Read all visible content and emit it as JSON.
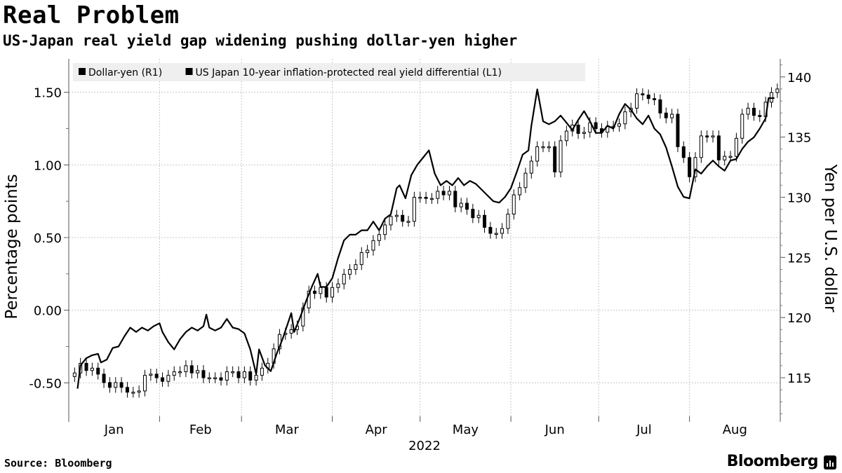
{
  "header": {
    "title": "Real Problem",
    "subtitle": "US-Japan real yield gap widening pushing dollar-yen higher"
  },
  "footer": {
    "source": "Source: Bloomberg",
    "brand": "Bloomberg"
  },
  "chart_data": {
    "type": "line",
    "legend": [
      {
        "name": "Dollar-yen (R1)",
        "color": "#000000"
      },
      {
        "name": "US Japan 10-year inflation-protected real yield differential (L1)",
        "color": "#000000"
      }
    ],
    "legend_placement": "top-left",
    "xlabel": "2022",
    "x_ticks": [
      "Jan",
      "Feb",
      "Mar",
      "Apr",
      "May",
      "Jun",
      "Jul",
      "Aug"
    ],
    "ylabel_left": "Percentage points",
    "ylabel_right": "Yen per U.S. dollar",
    "left_ticks": [
      "1.50",
      "1.00",
      "0.50",
      "0.00",
      "-0.50"
    ],
    "right_ticks": [
      "140",
      "135",
      "130",
      "125",
      "120",
      "115"
    ],
    "ylim_left": [
      -0.73,
      1.73
    ],
    "ylim_right": [
      111.8,
      141.5
    ],
    "xlim": [
      "2022-01-01",
      "2022-09-01"
    ],
    "grid": true,
    "series": [
      {
        "name": "US Japan 10-year inflation-protected real yield differential (L1)",
        "axis": "left",
        "type": "line",
        "points": [
          [
            "2022-01-04",
            -0.54
          ],
          [
            "2022-01-05",
            -0.38
          ],
          [
            "2022-01-07",
            -0.33
          ],
          [
            "2022-01-09",
            -0.31
          ],
          [
            "2022-01-11",
            -0.3
          ],
          [
            "2022-01-12",
            -0.36
          ],
          [
            "2022-01-14",
            -0.34
          ],
          [
            "2022-01-16",
            -0.26
          ],
          [
            "2022-01-18",
            -0.25
          ],
          [
            "2022-01-20",
            -0.18
          ],
          [
            "2022-01-22",
            -0.12
          ],
          [
            "2022-01-24",
            -0.15
          ],
          [
            "2022-01-26",
            -0.12
          ],
          [
            "2022-01-28",
            -0.14
          ],
          [
            "2022-01-30",
            -0.11
          ],
          [
            "2022-02-01",
            -0.09
          ],
          [
            "2022-02-02",
            -0.15
          ],
          [
            "2022-02-04",
            -0.22
          ],
          [
            "2022-02-06",
            -0.27
          ],
          [
            "2022-02-08",
            -0.2
          ],
          [
            "2022-02-10",
            -0.15
          ],
          [
            "2022-02-12",
            -0.12
          ],
          [
            "2022-02-14",
            -0.14
          ],
          [
            "2022-02-16",
            -0.11
          ],
          [
            "2022-02-17",
            -0.03
          ],
          [
            "2022-02-18",
            -0.12
          ],
          [
            "2022-02-20",
            -0.14
          ],
          [
            "2022-02-22",
            -0.12
          ],
          [
            "2022-02-24",
            -0.06
          ],
          [
            "2022-02-26",
            -0.12
          ],
          [
            "2022-02-28",
            -0.13
          ],
          [
            "2022-03-02",
            -0.16
          ],
          [
            "2022-03-04",
            -0.27
          ],
          [
            "2022-03-06",
            -0.44
          ],
          [
            "2022-03-07",
            -0.27
          ],
          [
            "2022-03-09",
            -0.38
          ],
          [
            "2022-03-11",
            -0.42
          ],
          [
            "2022-03-13",
            -0.3
          ],
          [
            "2022-03-15",
            -0.2
          ],
          [
            "2022-03-17",
            -0.08
          ],
          [
            "2022-03-18",
            -0.02
          ],
          [
            "2022-03-19",
            -0.15
          ],
          [
            "2022-03-21",
            -0.05
          ],
          [
            "2022-03-23",
            0.06
          ],
          [
            "2022-03-25",
            0.16
          ],
          [
            "2022-03-27",
            0.25
          ],
          [
            "2022-03-28",
            0.16
          ],
          [
            "2022-03-30",
            0.16
          ],
          [
            "2022-04-01",
            0.22
          ],
          [
            "2022-04-03",
            0.36
          ],
          [
            "2022-04-05",
            0.48
          ],
          [
            "2022-04-07",
            0.52
          ],
          [
            "2022-04-09",
            0.52
          ],
          [
            "2022-04-11",
            0.55
          ],
          [
            "2022-04-13",
            0.55
          ],
          [
            "2022-04-15",
            0.61
          ],
          [
            "2022-04-17",
            0.55
          ],
          [
            "2022-04-19",
            0.63
          ],
          [
            "2022-04-21",
            0.66
          ],
          [
            "2022-04-23",
            0.84
          ],
          [
            "2022-04-24",
            0.86
          ],
          [
            "2022-04-26",
            0.77
          ],
          [
            "2022-04-28",
            0.93
          ],
          [
            "2022-04-30",
            1.0
          ],
          [
            "2022-05-02",
            1.05
          ],
          [
            "2022-05-04",
            1.1
          ],
          [
            "2022-05-06",
            0.94
          ],
          [
            "2022-05-08",
            0.86
          ],
          [
            "2022-05-10",
            0.89
          ],
          [
            "2022-05-12",
            0.86
          ],
          [
            "2022-05-14",
            0.91
          ],
          [
            "2022-05-16",
            0.86
          ],
          [
            "2022-05-18",
            0.89
          ],
          [
            "2022-05-20",
            0.87
          ],
          [
            "2022-05-22",
            0.83
          ],
          [
            "2022-05-24",
            0.79
          ],
          [
            "2022-05-26",
            0.75
          ],
          [
            "2022-05-28",
            0.74
          ],
          [
            "2022-05-30",
            0.78
          ],
          [
            "2022-06-01",
            0.84
          ],
          [
            "2022-06-03",
            0.95
          ],
          [
            "2022-06-05",
            1.07
          ],
          [
            "2022-06-07",
            1.1
          ],
          [
            "2022-06-08",
            1.27
          ],
          [
            "2022-06-10",
            1.52
          ],
          [
            "2022-06-12",
            1.3
          ],
          [
            "2022-06-14",
            1.28
          ],
          [
            "2022-06-16",
            1.3
          ],
          [
            "2022-06-18",
            1.34
          ],
          [
            "2022-06-20",
            1.29
          ],
          [
            "2022-06-22",
            1.24
          ],
          [
            "2022-06-24",
            1.31
          ],
          [
            "2022-06-26",
            1.37
          ],
          [
            "2022-06-28",
            1.3
          ],
          [
            "2022-06-30",
            1.22
          ],
          [
            "2022-07-02",
            1.22
          ],
          [
            "2022-07-04",
            1.27
          ],
          [
            "2022-07-06",
            1.25
          ],
          [
            "2022-07-08",
            1.35
          ],
          [
            "2022-07-10",
            1.42
          ],
          [
            "2022-07-12",
            1.38
          ],
          [
            "2022-07-14",
            1.32
          ],
          [
            "2022-07-16",
            1.28
          ],
          [
            "2022-07-18",
            1.34
          ],
          [
            "2022-07-20",
            1.25
          ],
          [
            "2022-07-22",
            1.21
          ],
          [
            "2022-07-24",
            1.12
          ],
          [
            "2022-07-26",
            0.99
          ],
          [
            "2022-07-28",
            0.85
          ],
          [
            "2022-07-30",
            0.78
          ],
          [
            "2022-08-01",
            0.77
          ],
          [
            "2022-08-03",
            0.97
          ],
          [
            "2022-08-05",
            0.94
          ],
          [
            "2022-08-07",
            0.99
          ],
          [
            "2022-08-09",
            1.03
          ],
          [
            "2022-08-11",
            0.99
          ],
          [
            "2022-08-13",
            0.96
          ],
          [
            "2022-08-15",
            1.03
          ],
          [
            "2022-08-17",
            1.04
          ],
          [
            "2022-08-19",
            1.11
          ],
          [
            "2022-08-21",
            1.16
          ],
          [
            "2022-08-23",
            1.19
          ],
          [
            "2022-08-25",
            1.25
          ],
          [
            "2022-08-27",
            1.32
          ],
          [
            "2022-08-28",
            1.46
          ],
          [
            "2022-08-30",
            1.46
          ]
        ]
      },
      {
        "name": "Dollar-yen (R1)",
        "axis": "right",
        "type": "candlestick",
        "close": [
          [
            "2022-01-03",
            115.4
          ],
          [
            "2022-01-05",
            116.2
          ],
          [
            "2022-01-07",
            115.6
          ],
          [
            "2022-01-09",
            115.8
          ],
          [
            "2022-01-11",
            115.3
          ],
          [
            "2022-01-13",
            114.6
          ],
          [
            "2022-01-15",
            114.2
          ],
          [
            "2022-01-17",
            114.6
          ],
          [
            "2022-01-19",
            114.2
          ],
          [
            "2022-01-21",
            113.8
          ],
          [
            "2022-01-23",
            113.8
          ],
          [
            "2022-01-25",
            113.9
          ],
          [
            "2022-01-27",
            115.2
          ],
          [
            "2022-01-29",
            115.3
          ],
          [
            "2022-01-31",
            115.0
          ],
          [
            "2022-02-02",
            114.7
          ],
          [
            "2022-02-04",
            115.2
          ],
          [
            "2022-02-06",
            115.5
          ],
          [
            "2022-02-08",
            115.5
          ],
          [
            "2022-02-10",
            116.0
          ],
          [
            "2022-02-12",
            115.4
          ],
          [
            "2022-02-14",
            115.6
          ],
          [
            "2022-02-16",
            115.0
          ],
          [
            "2022-02-18",
            115.0
          ],
          [
            "2022-02-20",
            115.0
          ],
          [
            "2022-02-22",
            114.8
          ],
          [
            "2022-02-24",
            115.5
          ],
          [
            "2022-02-26",
            115.5
          ],
          [
            "2022-02-28",
            115.0
          ],
          [
            "2022-03-02",
            115.5
          ],
          [
            "2022-03-04",
            114.8
          ],
          [
            "2022-03-06",
            115.2
          ],
          [
            "2022-03-08",
            115.8
          ],
          [
            "2022-03-10",
            116.2
          ],
          [
            "2022-03-12",
            117.4
          ],
          [
            "2022-03-14",
            118.6
          ],
          [
            "2022-03-16",
            118.7
          ],
          [
            "2022-03-18",
            119.0
          ],
          [
            "2022-03-20",
            119.3
          ],
          [
            "2022-03-22",
            120.8
          ],
          [
            "2022-03-24",
            122.2
          ],
          [
            "2022-03-26",
            122.0
          ],
          [
            "2022-03-28",
            122.5
          ],
          [
            "2022-03-30",
            121.7
          ],
          [
            "2022-04-01",
            122.5
          ],
          [
            "2022-04-03",
            122.8
          ],
          [
            "2022-04-05",
            123.6
          ],
          [
            "2022-04-07",
            124.0
          ],
          [
            "2022-04-09",
            124.4
          ],
          [
            "2022-04-11",
            125.4
          ],
          [
            "2022-04-13",
            125.6
          ],
          [
            "2022-04-15",
            126.4
          ],
          [
            "2022-04-17",
            126.9
          ],
          [
            "2022-04-19",
            127.7
          ],
          [
            "2022-04-21",
            128.4
          ],
          [
            "2022-04-23",
            128.5
          ],
          [
            "2022-04-25",
            128.0
          ],
          [
            "2022-04-27",
            128.0
          ],
          [
            "2022-04-29",
            130.0
          ],
          [
            "2022-05-01",
            130.0
          ],
          [
            "2022-05-03",
            129.9
          ],
          [
            "2022-05-05",
            129.9
          ],
          [
            "2022-05-07",
            130.5
          ],
          [
            "2022-05-09",
            130.2
          ],
          [
            "2022-05-11",
            130.5
          ],
          [
            "2022-05-13",
            129.2
          ],
          [
            "2022-05-15",
            129.5
          ],
          [
            "2022-05-17",
            129.0
          ],
          [
            "2022-05-19",
            128.3
          ],
          [
            "2022-05-21",
            128.5
          ],
          [
            "2022-05-23",
            127.5
          ],
          [
            "2022-05-25",
            127.0
          ],
          [
            "2022-05-27",
            127.0
          ],
          [
            "2022-05-29",
            127.4
          ],
          [
            "2022-05-31",
            128.6
          ],
          [
            "2022-06-02",
            130.2
          ],
          [
            "2022-06-04",
            130.8
          ],
          [
            "2022-06-06",
            132.0
          ],
          [
            "2022-06-08",
            133.0
          ],
          [
            "2022-06-10",
            134.2
          ],
          [
            "2022-06-12",
            134.2
          ],
          [
            "2022-06-14",
            134.2
          ],
          [
            "2022-06-16",
            132.1
          ],
          [
            "2022-06-18",
            134.7
          ],
          [
            "2022-06-20",
            135.5
          ],
          [
            "2022-06-22",
            136.0
          ],
          [
            "2022-06-24",
            135.3
          ],
          [
            "2022-06-26",
            135.4
          ],
          [
            "2022-06-28",
            136.2
          ],
          [
            "2022-06-30",
            135.7
          ],
          [
            "2022-07-02",
            135.4
          ],
          [
            "2022-07-04",
            135.9
          ],
          [
            "2022-07-06",
            135.9
          ],
          [
            "2022-07-08",
            136.1
          ],
          [
            "2022-07-10",
            137.1
          ],
          [
            "2022-07-12",
            137.4
          ],
          [
            "2022-07-14",
            138.6
          ],
          [
            "2022-07-16",
            138.5
          ],
          [
            "2022-07-18",
            138.2
          ],
          [
            "2022-07-20",
            138.1
          ],
          [
            "2022-07-22",
            137.0
          ],
          [
            "2022-07-24",
            136.6
          ],
          [
            "2022-07-26",
            136.9
          ],
          [
            "2022-07-28",
            134.2
          ],
          [
            "2022-07-30",
            133.3
          ],
          [
            "2022-08-01",
            131.7
          ],
          [
            "2022-08-03",
            133.3
          ],
          [
            "2022-08-05",
            135.1
          ],
          [
            "2022-08-07",
            135.0
          ],
          [
            "2022-08-09",
            135.1
          ],
          [
            "2022-08-11",
            133.1
          ],
          [
            "2022-08-13",
            133.4
          ],
          [
            "2022-08-15",
            133.4
          ],
          [
            "2022-08-17",
            134.9
          ],
          [
            "2022-08-19",
            136.9
          ],
          [
            "2022-08-21",
            137.4
          ],
          [
            "2022-08-23",
            136.8
          ],
          [
            "2022-08-25",
            136.7
          ],
          [
            "2022-08-27",
            137.9
          ],
          [
            "2022-08-29",
            138.7
          ],
          [
            "2022-08-31",
            139.0
          ]
        ]
      }
    ]
  }
}
